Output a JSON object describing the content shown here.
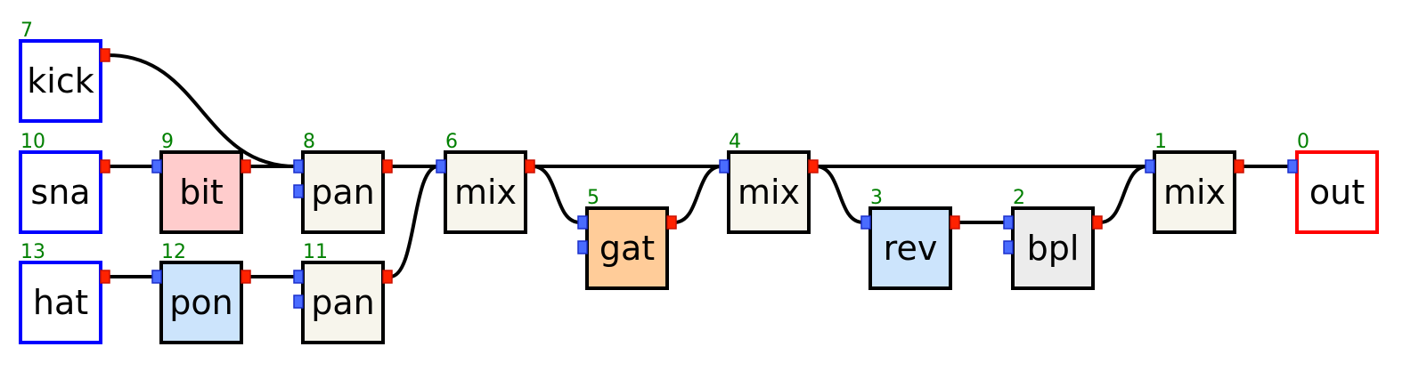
{
  "colors": {
    "border_default": "#000000",
    "border_input": "#0000ff",
    "border_output": "#ff0000",
    "port_in": "#4a6cff",
    "port_out": "#ff2200",
    "node_id": "#008000",
    "fill_white": "#ffffff",
    "fill_cream": "#f7f5ec",
    "fill_pink": "#ffcccc",
    "fill_blue": "#cce4fc",
    "fill_orange": "#ffcc99",
    "fill_gray": "#ececec"
  },
  "nodes": [
    {
      "id": "7",
      "label": "kick",
      "kind": "input",
      "fill": "fill_white",
      "inputs": 0
    },
    {
      "id": "10",
      "label": "sna",
      "kind": "input",
      "fill": "fill_white",
      "inputs": 0
    },
    {
      "id": "13",
      "label": "hat",
      "kind": "input",
      "fill": "fill_white",
      "inputs": 0
    },
    {
      "id": "9",
      "label": "bit",
      "kind": "effect",
      "fill": "fill_pink",
      "inputs": 1
    },
    {
      "id": "12",
      "label": "pon",
      "kind": "effect",
      "fill": "fill_blue",
      "inputs": 1
    },
    {
      "id": "8",
      "label": "pan",
      "kind": "effect",
      "fill": "fill_cream",
      "inputs": 2
    },
    {
      "id": "11",
      "label": "pan",
      "kind": "effect",
      "fill": "fill_cream",
      "inputs": 2
    },
    {
      "id": "6",
      "label": "mix",
      "kind": "effect",
      "fill": "fill_cream",
      "inputs": 1
    },
    {
      "id": "5",
      "label": "gat",
      "kind": "effect",
      "fill": "fill_orange",
      "inputs": 2
    },
    {
      "id": "4",
      "label": "mix",
      "kind": "effect",
      "fill": "fill_cream",
      "inputs": 1
    },
    {
      "id": "3",
      "label": "rev",
      "kind": "effect",
      "fill": "fill_blue",
      "inputs": 1
    },
    {
      "id": "2",
      "label": "bpl",
      "kind": "effect",
      "fill": "fill_gray",
      "inputs": 2
    },
    {
      "id": "1",
      "label": "mix",
      "kind": "effect",
      "fill": "fill_cream",
      "inputs": 1
    },
    {
      "id": "0",
      "label": "out",
      "kind": "output",
      "fill": "fill_white",
      "inputs": 1
    }
  ],
  "edges": [
    {
      "from": "7",
      "to": "8",
      "port": 0
    },
    {
      "from": "10",
      "to": "9",
      "port": 0
    },
    {
      "from": "9",
      "to": "8",
      "port": 0
    },
    {
      "from": "13",
      "to": "12",
      "port": 0
    },
    {
      "from": "12",
      "to": "11",
      "port": 0
    },
    {
      "from": "8",
      "to": "6",
      "port": 0
    },
    {
      "from": "11",
      "to": "6",
      "port": 0
    },
    {
      "from": "6",
      "to": "5",
      "port": 0
    },
    {
      "from": "6",
      "to": "4",
      "port": 0
    },
    {
      "from": "5",
      "to": "4",
      "port": 0
    },
    {
      "from": "4",
      "to": "3",
      "port": 0
    },
    {
      "from": "4",
      "to": "1",
      "port": 0
    },
    {
      "from": "3",
      "to": "2",
      "port": 0
    },
    {
      "from": "2",
      "to": "1",
      "port": 0
    },
    {
      "from": "1",
      "to": "0",
      "port": 0
    }
  ]
}
